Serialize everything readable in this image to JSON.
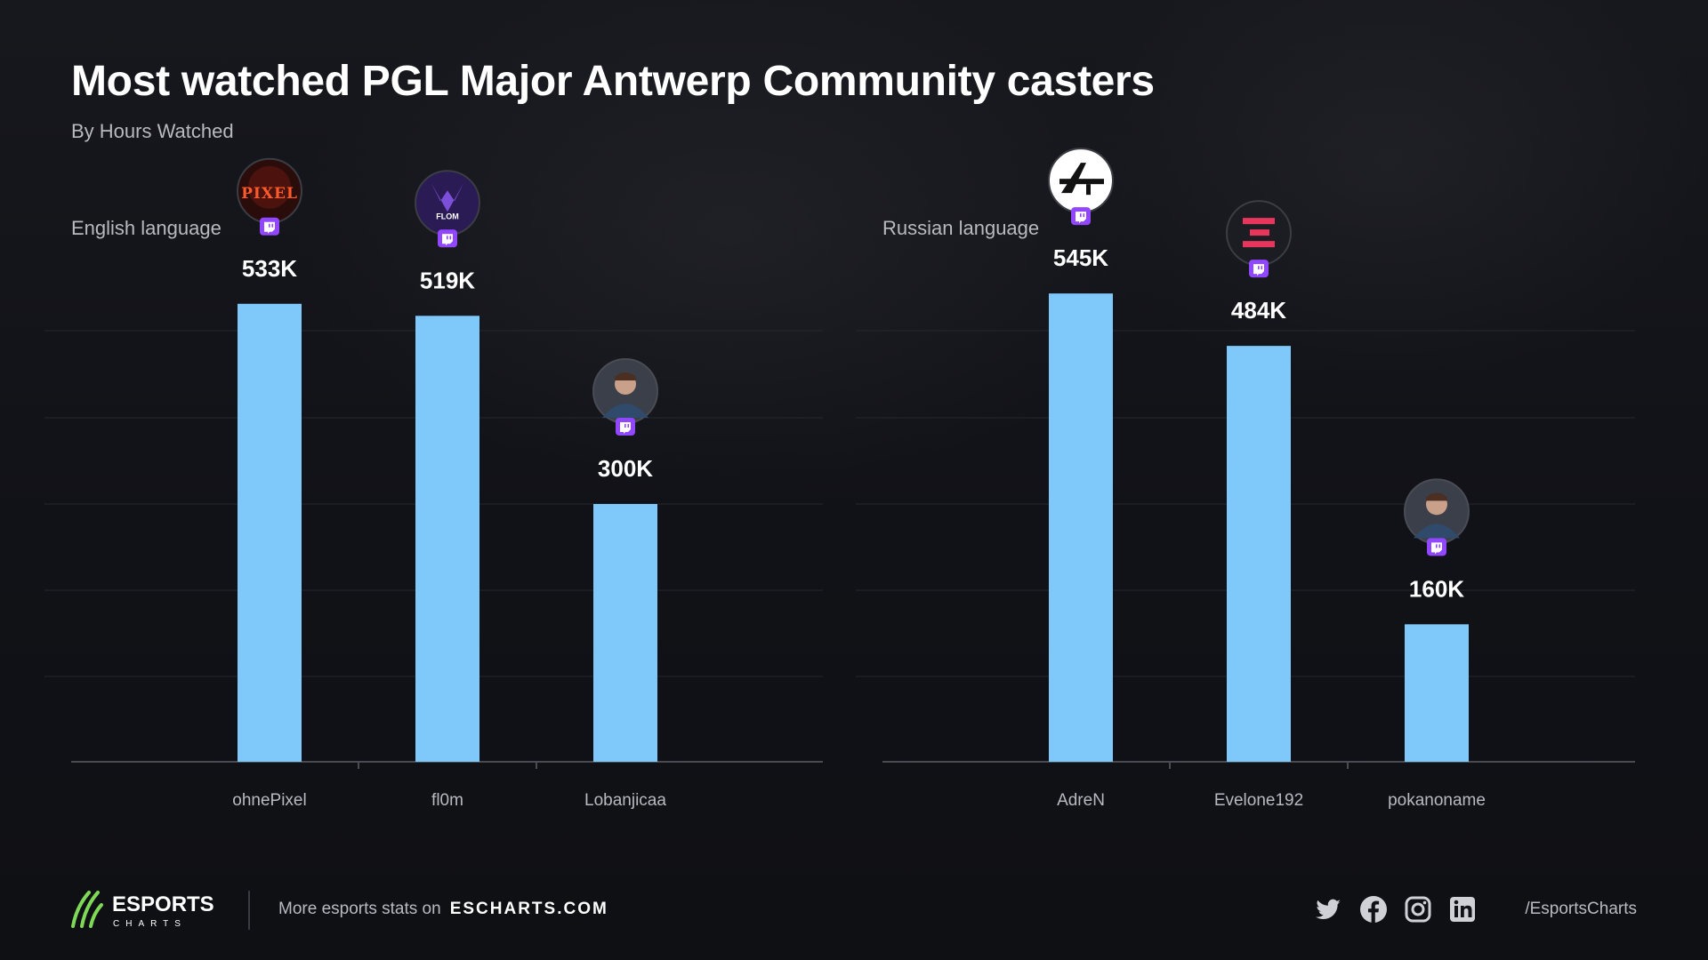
{
  "header": {
    "title": "Most watched PGL Major Antwerp Community casters",
    "subtitle": "By Hours Watched"
  },
  "chart_data": [
    {
      "type": "bar",
      "label": "English language",
      "categories": [
        "ohnePixel",
        "fl0m",
        "Lobanjicaa"
      ],
      "values": [
        533000,
        519000,
        300000
      ],
      "value_labels": [
        "533K",
        "519K",
        "300K"
      ],
      "ylim": [
        0,
        600000
      ],
      "grid": true,
      "bar_color": "#7fc8fa",
      "avatars": [
        "pixel-logo",
        "flom-logo",
        "streamer-photo"
      ],
      "platform_icon": "twitch-icon"
    },
    {
      "type": "bar",
      "label": "Russian language",
      "categories": [
        "AdreN",
        "Evelone192",
        "pokanoname"
      ],
      "values": [
        545000,
        484000,
        160000
      ],
      "value_labels": [
        "545K",
        "484K",
        "160K"
      ],
      "ylim": [
        0,
        600000
      ],
      "grid": true,
      "bar_color": "#7fc8fa",
      "avatars": [
        "rifle-logo",
        "evelone-logo",
        "streamer-photo"
      ],
      "platform_icon": "twitch-icon"
    }
  ],
  "footer": {
    "brand_main": "ESPORTS",
    "brand_sub": "CHARTS",
    "cta": "More esports stats on",
    "site": "ESCHARTS.COM",
    "social_icons": [
      "twitter-icon",
      "facebook-icon",
      "instagram-icon",
      "linkedin-icon"
    ],
    "handle": "/EsportsCharts"
  },
  "colors": {
    "background": "#111217",
    "bar": "#7fc8fa",
    "twitch": "#9146ff",
    "accent_green": "#7ed957"
  }
}
